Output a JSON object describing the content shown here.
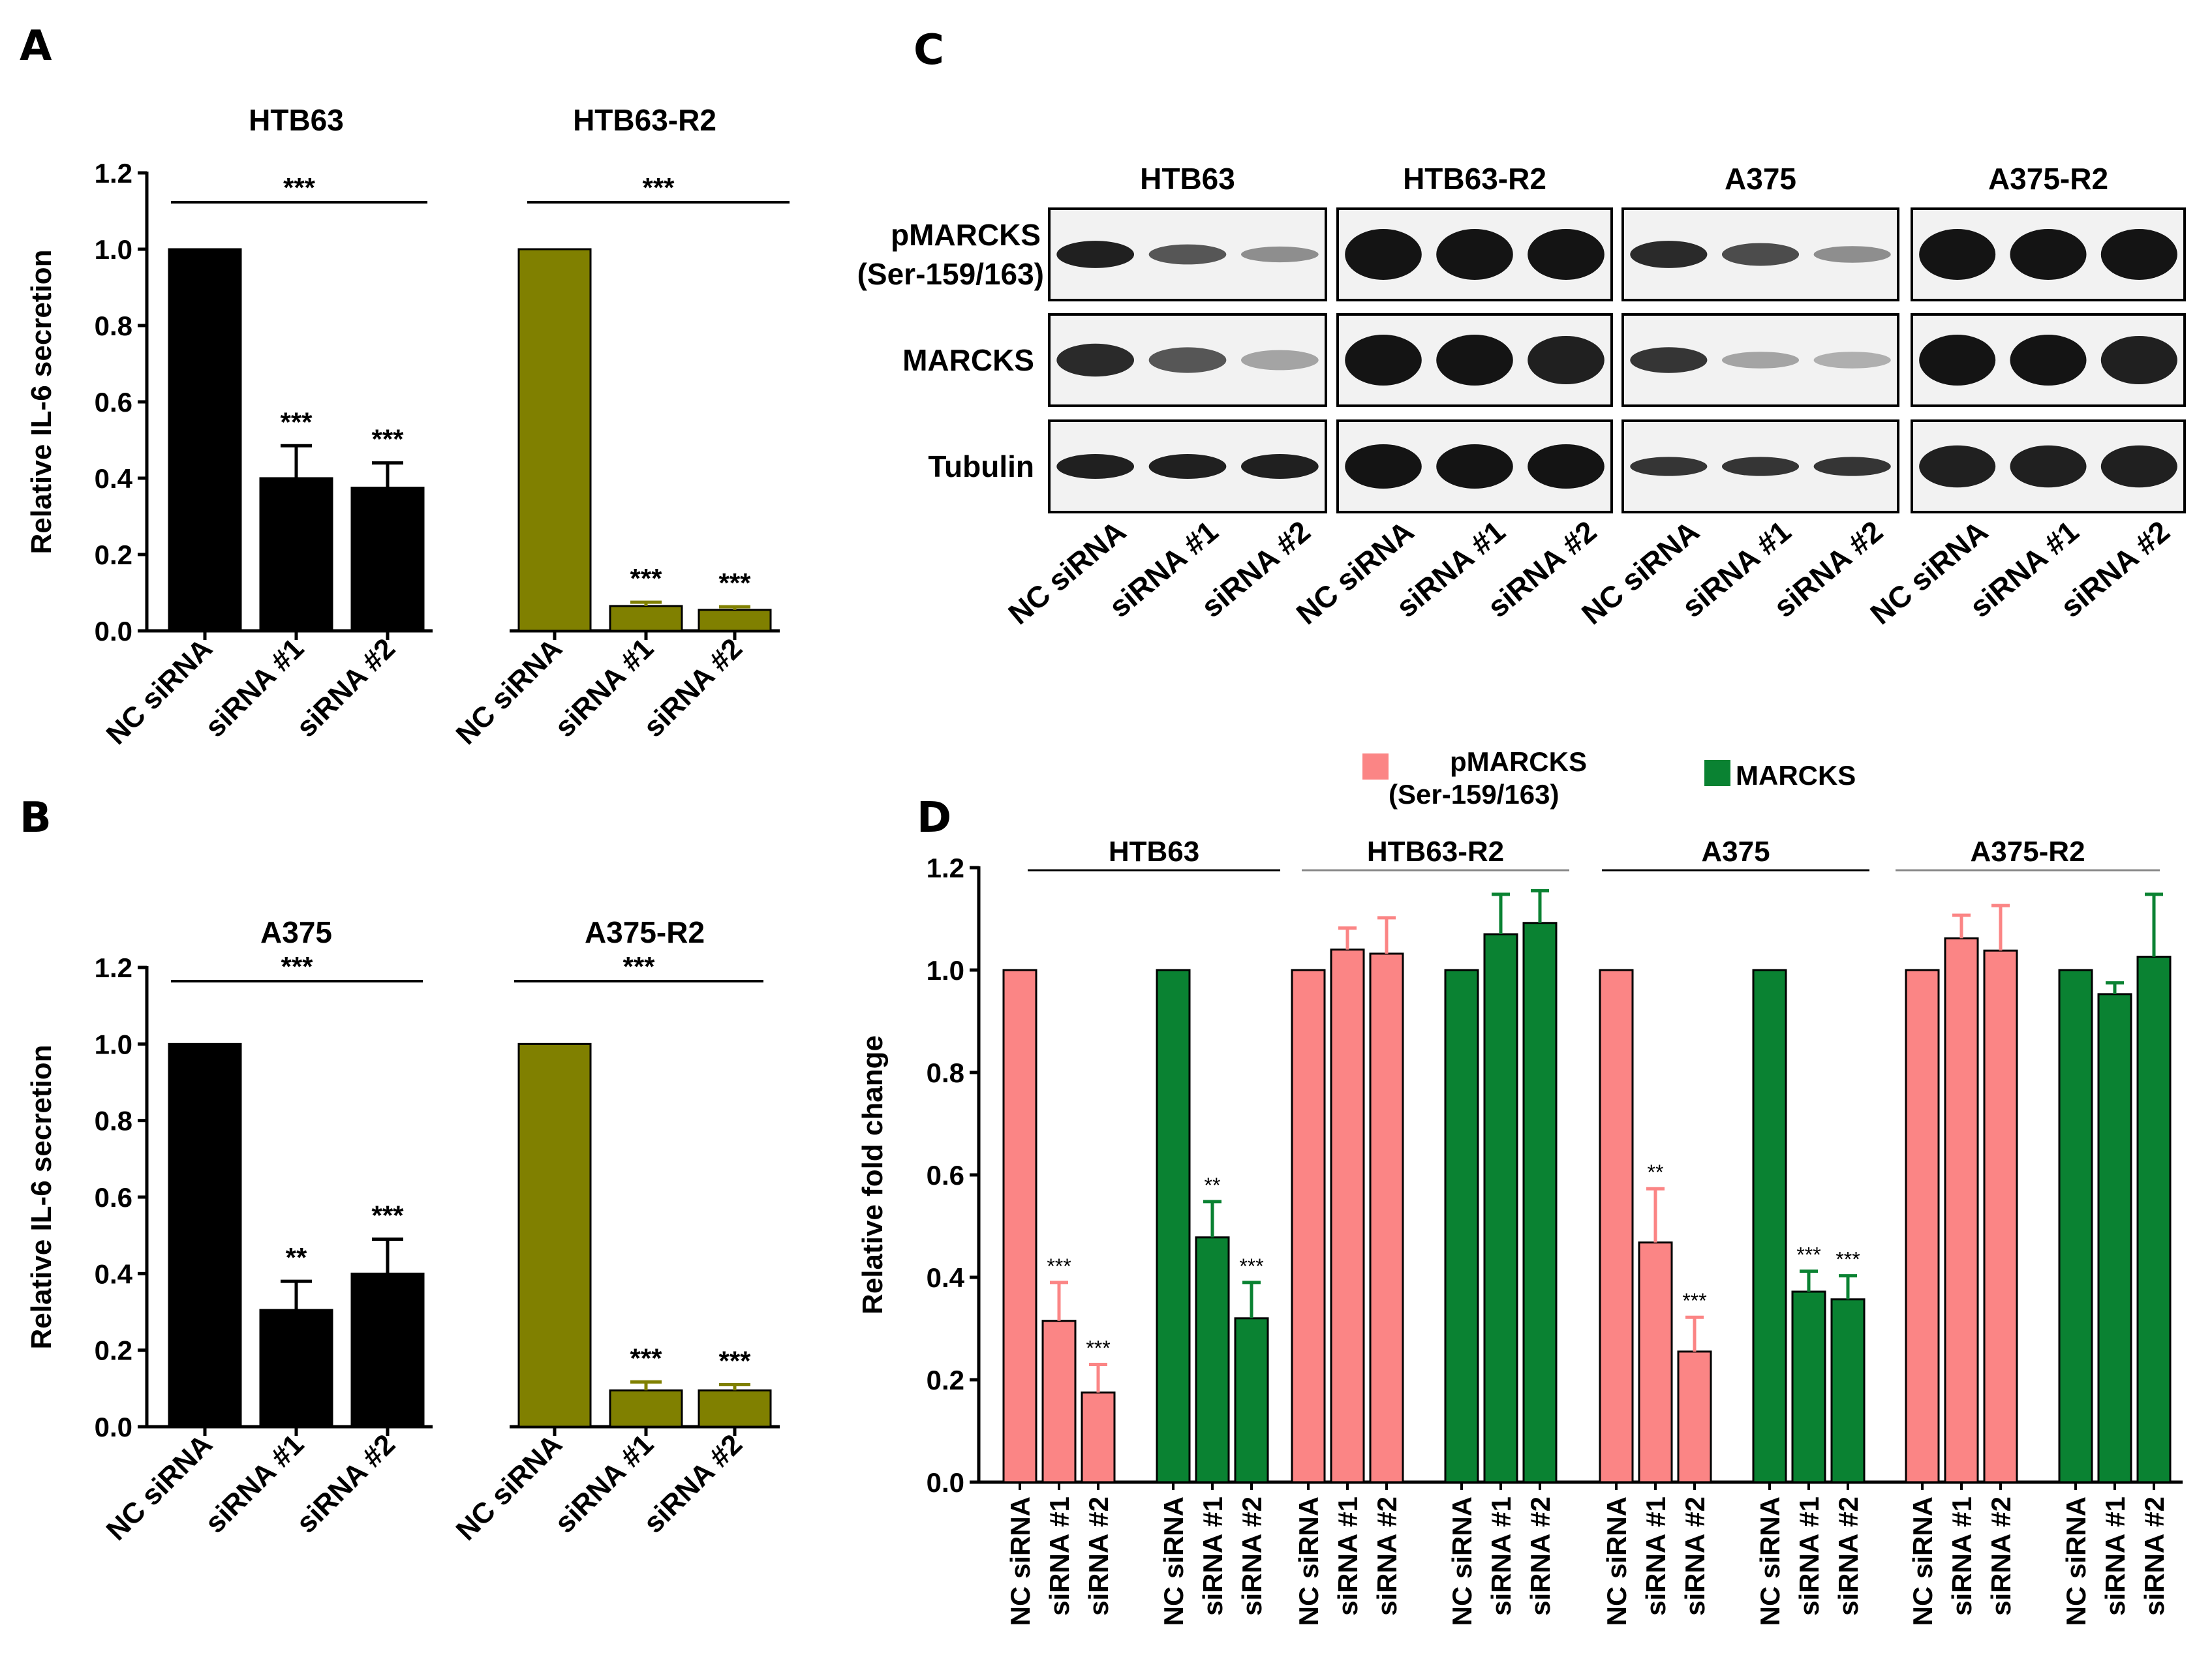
{
  "panels": {
    "a": "A",
    "b": "B",
    "c": "C",
    "d": "D"
  },
  "colors": {
    "black": "#000000",
    "olive": "#808000",
    "pink": "#fb8585",
    "green": "#0a8232",
    "blot_bg": "#f2f2f2",
    "band": "#141414"
  },
  "chart_data": [
    {
      "id": "A",
      "type": "bar",
      "ylabel": "Relative IL-6 secretion",
      "ylim": [
        0,
        1.2
      ],
      "yticks": [
        "0.0",
        "0.2",
        "0.4",
        "0.6",
        "0.8",
        "1.0",
        "1.2"
      ],
      "groups": [
        {
          "title": "HTB63",
          "group_sig": "***",
          "color": "#000000",
          "categories": [
            "NC siRNA",
            "siRNA #1",
            "siRNA #2"
          ],
          "values": [
            1.0,
            0.4,
            0.375
          ],
          "errors": [
            0,
            0.085,
            0.065
          ],
          "sig": [
            "",
            "***",
            "***"
          ]
        },
        {
          "title": "HTB63-R2",
          "group_sig": "***",
          "color": "#808000",
          "categories": [
            "NC siRNA",
            "siRNA #1",
            "siRNA #2"
          ],
          "values": [
            1.0,
            0.065,
            0.055
          ],
          "errors": [
            0,
            0.01,
            0.008
          ],
          "sig": [
            "",
            "***",
            "***"
          ]
        }
      ]
    },
    {
      "id": "B",
      "type": "bar",
      "ylabel": "Relative IL-6 secretion",
      "ylim": [
        0,
        1.2
      ],
      "yticks": [
        "0.0",
        "0.2",
        "0.4",
        "0.6",
        "0.8",
        "1.0",
        "1.2"
      ],
      "groups": [
        {
          "title": "A375",
          "group_sig": "***",
          "color": "#000000",
          "categories": [
            "NC siRNA",
            "siRNA #1",
            "siRNA #2"
          ],
          "values": [
            1.0,
            0.305,
            0.4
          ],
          "errors": [
            0,
            0.075,
            0.09
          ],
          "sig": [
            "",
            "**",
            "***"
          ]
        },
        {
          "title": "A375-R2",
          "group_sig": "***",
          "color": "#808000",
          "categories": [
            "NC siRNA",
            "siRNA #1",
            "siRNA #2"
          ],
          "values": [
            1.0,
            0.095,
            0.095
          ],
          "errors": [
            0,
            0.022,
            0.015
          ],
          "sig": [
            "",
            "***",
            "***"
          ]
        }
      ]
    },
    {
      "id": "D",
      "type": "bar",
      "ylabel": "Relative fold change",
      "ylim": [
        0,
        1.2
      ],
      "yticks": [
        "0.0",
        "0.2",
        "0.4",
        "0.6",
        "0.8",
        "1.0",
        "1.2"
      ],
      "legend": [
        {
          "label": "pMARCKS",
          "label2": "(Ser-159/163)",
          "color": "#fb8585"
        },
        {
          "label": "MARCKS",
          "label2": "",
          "color": "#0a8232"
        }
      ],
      "cell_lines": [
        "HTB63",
        "HTB63-R2",
        "A375",
        "A375-R2"
      ],
      "categories": [
        "NC siRNA",
        "siRNA #1",
        "siRNA #2"
      ],
      "groups": [
        {
          "cell": "HTB63",
          "series": "pMARCKS",
          "color": "#fb8585",
          "values": [
            1.0,
            0.315,
            0.175
          ],
          "errors": [
            0,
            0.075,
            0.055
          ],
          "sig": [
            "",
            "***",
            "***"
          ]
        },
        {
          "cell": "HTB63",
          "series": "MARCKS",
          "color": "#0a8232",
          "values": [
            1.0,
            0.478,
            0.32
          ],
          "errors": [
            0,
            0.07,
            0.07
          ],
          "sig": [
            "",
            "**",
            "***"
          ]
        },
        {
          "cell": "HTB63-R2",
          "series": "pMARCKS",
          "color": "#fb8585",
          "values": [
            1.0,
            1.04,
            1.032
          ],
          "errors": [
            0,
            0.042,
            0.07
          ],
          "sig": [
            "",
            "",
            ""
          ]
        },
        {
          "cell": "HTB63-R2",
          "series": "MARCKS",
          "color": "#0a8232",
          "values": [
            1.0,
            1.07,
            1.092
          ],
          "errors": [
            0,
            0.078,
            0.063
          ],
          "sig": [
            "",
            "",
            ""
          ]
        },
        {
          "cell": "A375",
          "series": "pMARCKS",
          "color": "#fb8585",
          "values": [
            1.0,
            0.468,
            0.255
          ],
          "errors": [
            0,
            0.105,
            0.067
          ],
          "sig": [
            "",
            "**",
            "***"
          ]
        },
        {
          "cell": "A375",
          "series": "MARCKS",
          "color": "#0a8232",
          "values": [
            1.0,
            0.372,
            0.357
          ],
          "errors": [
            0,
            0.04,
            0.046
          ],
          "sig": [
            "",
            "***",
            "***"
          ]
        },
        {
          "cell": "A375-R2",
          "series": "pMARCKS",
          "color": "#fb8585",
          "values": [
            1.0,
            1.062,
            1.038
          ],
          "errors": [
            0,
            0.045,
            0.088
          ],
          "sig": [
            "",
            "",
            ""
          ]
        },
        {
          "cell": "A375-R2",
          "series": "MARCKS",
          "color": "#0a8232",
          "values": [
            1.0,
            0.953,
            1.026
          ],
          "errors": [
            0,
            0.022,
            0.122
          ],
          "sig": [
            "",
            "",
            ""
          ]
        }
      ]
    }
  ],
  "blot": {
    "cell_lines": [
      "HTB63",
      "HTB63-R2",
      "A375",
      "A375-R2"
    ],
    "rows": [
      {
        "label": "pMARCKS",
        "label2": "(Ser-159/163)",
        "intensity": [
          [
            0.95,
            0.7,
            0.45
          ],
          [
            1,
            1,
            1
          ],
          [
            0.9,
            0.75,
            0.45
          ],
          [
            1,
            1,
            1
          ]
        ]
      },
      {
        "label": "MARCKS",
        "label2": "",
        "intensity": [
          [
            0.9,
            0.7,
            0.35
          ],
          [
            1,
            1,
            0.95
          ],
          [
            0.85,
            0.35,
            0.3
          ],
          [
            1,
            1,
            0.95
          ]
        ]
      },
      {
        "label": "Tubulin",
        "label2": "",
        "intensity": [
          [
            0.95,
            0.95,
            0.95
          ],
          [
            1,
            1,
            1
          ],
          [
            0.85,
            0.85,
            0.85
          ],
          [
            0.95,
            0.95,
            0.95
          ]
        ]
      }
    ],
    "lanes": [
      "NC siRNA",
      "siRNA #1",
      "siRNA #2"
    ]
  }
}
